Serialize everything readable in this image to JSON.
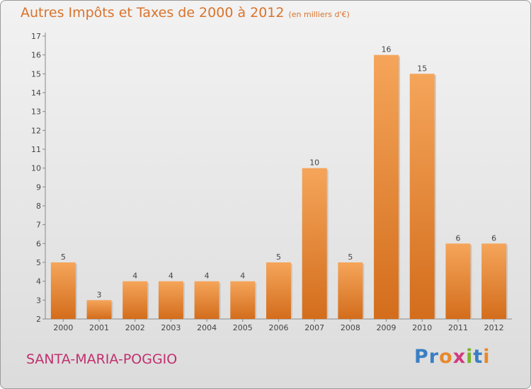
{
  "header": {
    "title": "Autres Impôts et Taxes de 2000 à 2012",
    "subtitle": "(en milliers d'€)"
  },
  "place": "SANTA-MARIA-POGGIO",
  "logo": {
    "text": "Proxiti",
    "letters": [
      "P",
      "r",
      "o",
      "x",
      "i",
      "t",
      "i"
    ],
    "colors": [
      "#3a7fc4",
      "#3a7fc4",
      "#e8892b",
      "#d13a7e",
      "#79b42a",
      "#3a7fc4",
      "#e8892b"
    ]
  },
  "colors": {
    "title": "#d9732c",
    "place": "#c0306e",
    "bar_light": "#f5a55a",
    "bar_dark": "#d36d1c"
  },
  "chart_data": {
    "type": "bar",
    "title": "Autres Impôts et Taxes de 2000 à 2012",
    "subtitle": "(en milliers d'€)",
    "categories": [
      "2000",
      "2001",
      "2002",
      "2003",
      "2004",
      "2005",
      "2006",
      "2007",
      "2008",
      "2009",
      "2010",
      "2011",
      "2012"
    ],
    "values": [
      5,
      3,
      4,
      4,
      4,
      4,
      5,
      10,
      5,
      16,
      15,
      6,
      6
    ],
    "ylim": [
      2,
      17
    ],
    "yticks": [
      2,
      3,
      4,
      5,
      6,
      7,
      8,
      9,
      10,
      11,
      12,
      13,
      14,
      15,
      16,
      17
    ],
    "grid": false,
    "xlabel": "",
    "ylabel": ""
  }
}
